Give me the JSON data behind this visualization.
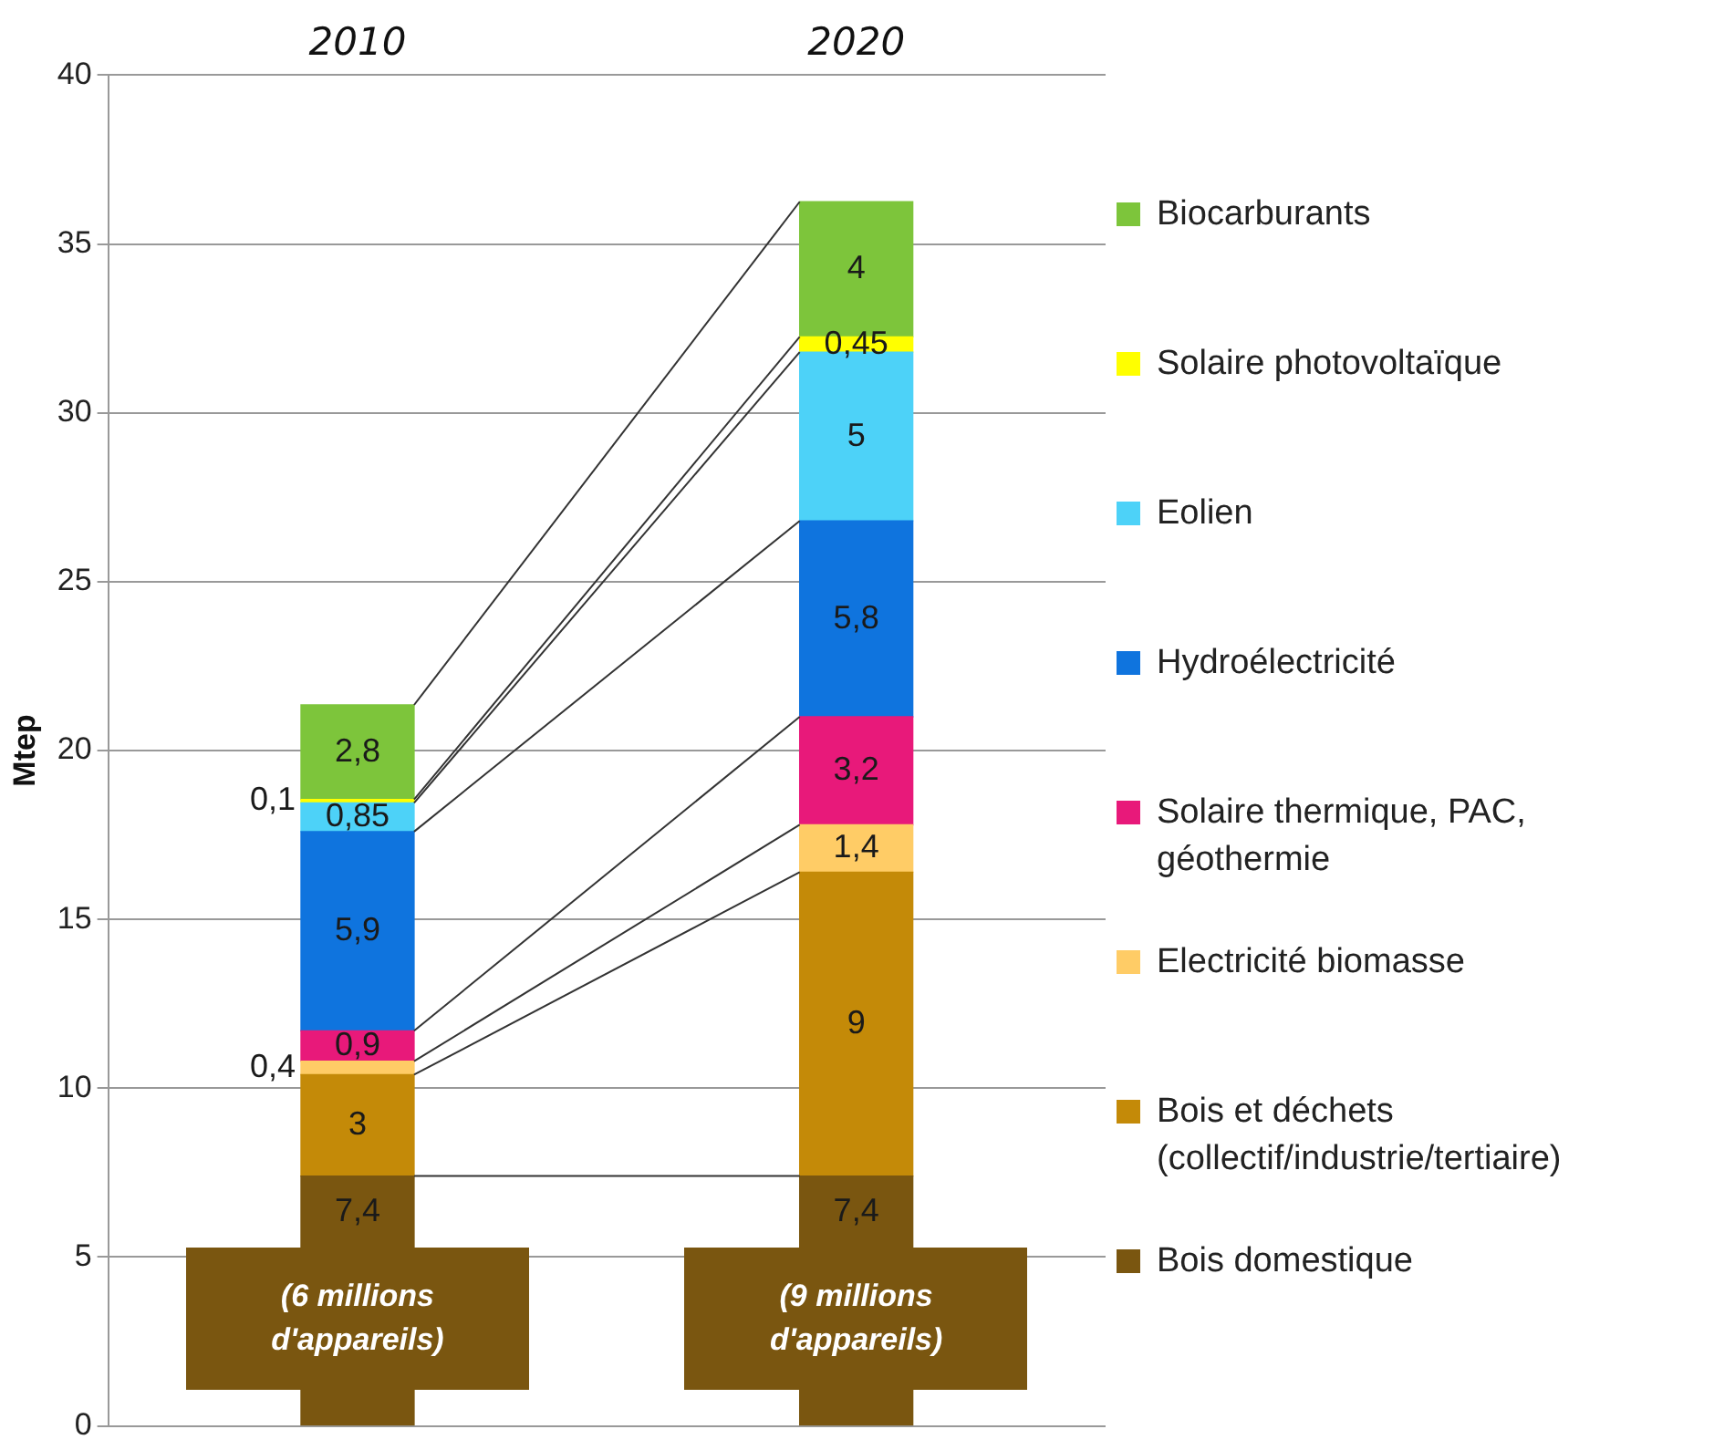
{
  "chart_data": {
    "type": "bar",
    "stacked": true,
    "ylabel": "Mtep",
    "categories": [
      "2010",
      "2020"
    ],
    "ylim": [
      0,
      40
    ],
    "yticks": [
      0,
      5,
      10,
      15,
      20,
      25,
      30,
      35,
      40
    ],
    "grid": "y",
    "legend": "right",
    "series": [
      {
        "name": "Bois domestique",
        "color": "#7a5610",
        "values": [
          7.4,
          7.4
        ],
        "value_labels": [
          "7,4",
          "7,4"
        ]
      },
      {
        "name": "Bois et déchets (collectif/industrie/tertiaire)",
        "color": "#c48a08",
        "values": [
          3,
          9
        ],
        "value_labels": [
          "3",
          "9"
        ]
      },
      {
        "name": "Electricité biomasse",
        "color": "#ffcc66",
        "values": [
          0.4,
          1.4
        ],
        "value_labels": [
          "0,4",
          "1,4"
        ]
      },
      {
        "name": "Solaire thermique, PAC, géothermie",
        "color": "#e8197a",
        "values": [
          0.9,
          3.2
        ],
        "value_labels": [
          "0,9",
          "3,2"
        ]
      },
      {
        "name": "Hydroélectricité",
        "color": "#0f74de",
        "values": [
          5.9,
          5.8
        ],
        "value_labels": [
          "5,9",
          "5,8"
        ]
      },
      {
        "name": "Eolien",
        "color": "#4dd2f8",
        "values": [
          0.85,
          5
        ],
        "value_labels": [
          "0,85",
          "5"
        ]
      },
      {
        "name": "Solaire photovoltaïque",
        "color": "#ffff00",
        "values": [
          0.1,
          0.45
        ],
        "value_labels": [
          "0,1",
          "0,45"
        ]
      },
      {
        "name": "Biocarburants",
        "color": "#7dc53b",
        "values": [
          2.8,
          4
        ],
        "value_labels": [
          "2,8",
          "4"
        ]
      }
    ],
    "annotations": [
      "(6 millions d'appareils)",
      "(9 millions d'appareils)"
    ]
  }
}
